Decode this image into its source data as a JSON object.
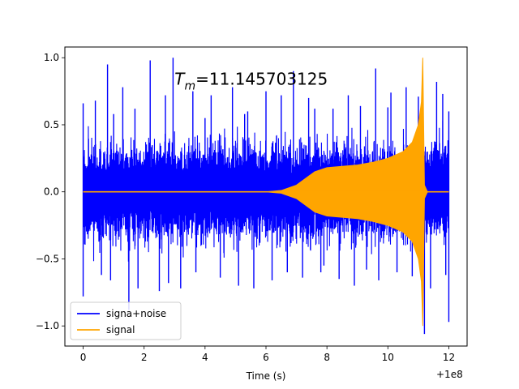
{
  "chart_data": {
    "type": "line",
    "xlabel": "Time (s)",
    "ylabel": "",
    "title": "",
    "axis_offset_label": "+1e8",
    "xlim": [
      -0.6,
      12.6
    ],
    "ylim": [
      -1.15,
      1.08
    ],
    "x_ticks": [
      0,
      2,
      4,
      6,
      8,
      10,
      12
    ],
    "x_tick_labels": [
      "0",
      "2",
      "4",
      "6",
      "8",
      "10",
      "12"
    ],
    "y_ticks": [
      1.0,
      0.5,
      0.0,
      -0.5,
      -1.0
    ],
    "y_tick_labels": [
      "1.0",
      "0.5",
      "0.0",
      "−0.5",
      "−1.0"
    ],
    "annotation": {
      "symbol": "T",
      "subscript": "m",
      "value_text": "=11.145703125",
      "x": 3.0,
      "y": 0.84
    },
    "legend": {
      "placement": "lower left",
      "entries": [
        {
          "label": "signa+noise",
          "color": "#0000ff"
        },
        {
          "label": "signal",
          "color": "#ffa500"
        }
      ]
    },
    "series": [
      {
        "name": "signa+noise",
        "color": "#0000ff",
        "kind": "noisy band",
        "x_range": [
          0,
          12
        ],
        "dense_envelope": 0.45,
        "spikes": [
          {
            "x": 0.0,
            "y": 0.66
          },
          {
            "x": 0.0,
            "y": -0.78
          },
          {
            "x": 0.4,
            "y": 0.68
          },
          {
            "x": 0.6,
            "y": -0.62
          },
          {
            "x": 0.8,
            "y": 0.95
          },
          {
            "x": 0.9,
            "y": -0.66
          },
          {
            "x": 1.0,
            "y": 0.58
          },
          {
            "x": 1.3,
            "y": 0.78
          },
          {
            "x": 1.5,
            "y": -0.88
          },
          {
            "x": 1.7,
            "y": 0.62
          },
          {
            "x": 1.8,
            "y": -0.72
          },
          {
            "x": 2.2,
            "y": 0.98
          },
          {
            "x": 2.5,
            "y": -0.74
          },
          {
            "x": 2.7,
            "y": 0.72
          },
          {
            "x": 2.8,
            "y": -0.68
          },
          {
            "x": 2.95,
            "y": 1.0
          },
          {
            "x": 3.2,
            "y": -0.72
          },
          {
            "x": 3.6,
            "y": 0.75
          },
          {
            "x": 3.7,
            "y": -0.6
          },
          {
            "x": 4.0,
            "y": 0.55
          },
          {
            "x": 4.2,
            "y": 0.72
          },
          {
            "x": 4.5,
            "y": -0.64
          },
          {
            "x": 4.9,
            "y": 0.78
          },
          {
            "x": 5.1,
            "y": -0.7
          },
          {
            "x": 5.3,
            "y": 0.58
          },
          {
            "x": 5.4,
            "y": 0.6
          },
          {
            "x": 5.6,
            "y": -0.72
          },
          {
            "x": 6.0,
            "y": 0.75
          },
          {
            "x": 6.2,
            "y": -0.66
          },
          {
            "x": 6.5,
            "y": 0.72
          },
          {
            "x": 6.7,
            "y": -0.6
          },
          {
            "x": 6.9,
            "y": 0.9
          },
          {
            "x": 7.2,
            "y": -0.64
          },
          {
            "x": 7.4,
            "y": 0.7
          },
          {
            "x": 7.6,
            "y": 0.62
          },
          {
            "x": 7.8,
            "y": -0.6
          },
          {
            "x": 7.9,
            "y": -0.55
          },
          {
            "x": 8.2,
            "y": 0.62
          },
          {
            "x": 8.4,
            "y": -0.65
          },
          {
            "x": 8.7,
            "y": 0.72
          },
          {
            "x": 8.9,
            "y": -0.7
          },
          {
            "x": 9.1,
            "y": 0.64
          },
          {
            "x": 9.3,
            "y": -0.58
          },
          {
            "x": 9.6,
            "y": 0.92
          },
          {
            "x": 9.7,
            "y": -0.66
          },
          {
            "x": 10.0,
            "y": 0.63
          },
          {
            "x": 10.1,
            "y": 0.74
          },
          {
            "x": 10.3,
            "y": -0.6
          },
          {
            "x": 10.6,
            "y": 0.78
          },
          {
            "x": 10.8,
            "y": -0.63
          },
          {
            "x": 11.0,
            "y": 0.71
          },
          {
            "x": 11.15,
            "y": 0.68
          },
          {
            "x": 11.2,
            "y": -1.06
          },
          {
            "x": 11.4,
            "y": -0.72
          },
          {
            "x": 11.6,
            "y": 0.82
          },
          {
            "x": 11.8,
            "y": 0.73
          },
          {
            "x": 11.9,
            "y": -0.62
          },
          {
            "x": 12.0,
            "y": 0.6
          },
          {
            "x": 12.0,
            "y": -0.97
          }
        ]
      },
      {
        "name": "signal",
        "color": "#ffa500",
        "kind": "chirp envelope",
        "x": [
          0,
          5.5,
          6.0,
          6.5,
          7.0,
          7.3,
          7.6,
          8.0,
          8.5,
          9.0,
          9.5,
          10.0,
          10.5,
          10.8,
          11.0,
          11.1,
          11.146,
          11.2,
          11.3,
          12.0
        ],
        "envelope": [
          0.0,
          0.0,
          0.0,
          0.01,
          0.05,
          0.1,
          0.15,
          0.18,
          0.19,
          0.2,
          0.22,
          0.25,
          0.3,
          0.37,
          0.5,
          0.67,
          1.0,
          0.05,
          0.0,
          0.0
        ]
      }
    ]
  }
}
